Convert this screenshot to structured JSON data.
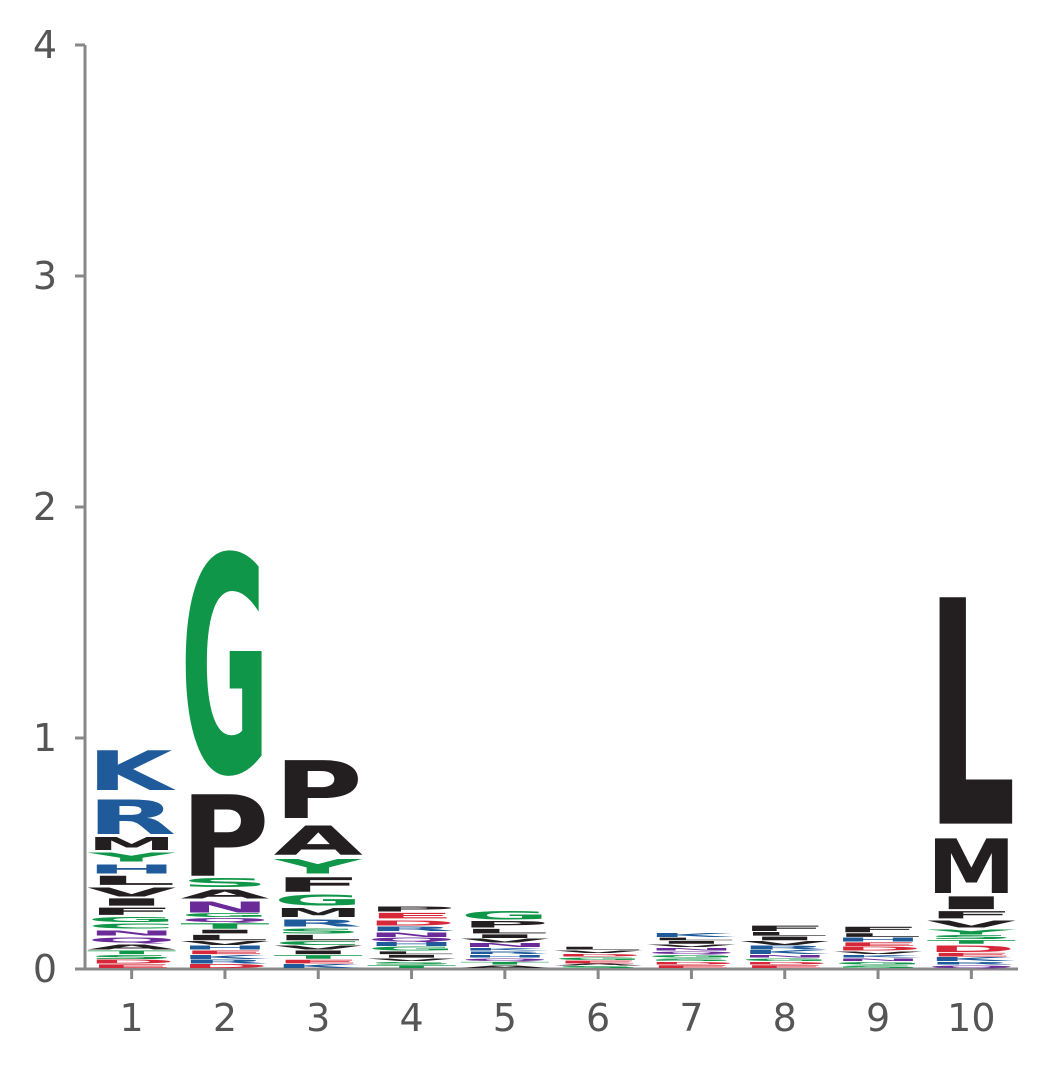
{
  "chart_data": {
    "type": "sequence-logo",
    "title": "",
    "xlabel": "",
    "ylabel": "",
    "ylim": [
      0,
      4
    ],
    "y_ticks": [
      "0",
      "1",
      "2",
      "3",
      "4"
    ],
    "positions": [
      "1",
      "2",
      "3",
      "4",
      "5",
      "6",
      "7",
      "8",
      "9",
      "10"
    ],
    "colors": {
      "K": "#1f5b9a",
      "R": "#1f5b9a",
      "H": "#1f5b9a",
      "G": "#109648",
      "S": "#109648",
      "T": "#109648",
      "Y": "#109648",
      "C": "#109648",
      "N": "#6a2b99",
      "Q": "#6a2b99",
      "D": "#d62839",
      "E": "#d62839",
      "P": "#231f20",
      "A": "#231f20",
      "M": "#231f20",
      "F": "#231f20",
      "L": "#231f20",
      "V": "#231f20",
      "I": "#231f20",
      "W": "#231f20",
      "axis": "#888888"
    },
    "stacks": [
      [
        {
          "letter": "E",
          "value": 0.02
        },
        {
          "letter": "D",
          "value": 0.02
        },
        {
          "letter": "S",
          "value": 0.02
        },
        {
          "letter": "T",
          "value": 0.02
        },
        {
          "letter": "A",
          "value": 0.03
        },
        {
          "letter": "Q",
          "value": 0.03
        },
        {
          "letter": "N",
          "value": 0.03
        },
        {
          "letter": "C",
          "value": 0.03
        },
        {
          "letter": "G",
          "value": 0.03
        },
        {
          "letter": "F",
          "value": 0.04
        },
        {
          "letter": "I",
          "value": 0.04
        },
        {
          "letter": "V",
          "value": 0.05
        },
        {
          "letter": "L",
          "value": 0.05
        },
        {
          "letter": "H",
          "value": 0.05
        },
        {
          "letter": "Y",
          "value": 0.05
        },
        {
          "letter": "M",
          "value": 0.07
        },
        {
          "letter": "R",
          "value": 0.19
        },
        {
          "letter": "K",
          "value": 0.22
        }
      ],
      [
        {
          "letter": "D",
          "value": 0.02
        },
        {
          "letter": "R",
          "value": 0.02
        },
        {
          "letter": "K",
          "value": 0.02
        },
        {
          "letter": "E",
          "value": 0.02
        },
        {
          "letter": "H",
          "value": 0.02
        },
        {
          "letter": "V",
          "value": 0.02
        },
        {
          "letter": "L",
          "value": 0.03
        },
        {
          "letter": "I",
          "value": 0.02
        },
        {
          "letter": "T",
          "value": 0.03
        },
        {
          "letter": "Q",
          "value": 0.02
        },
        {
          "letter": "G",
          "value": 0.02
        },
        {
          "letter": "N",
          "value": 0.06
        },
        {
          "letter": "A",
          "value": 0.05
        },
        {
          "letter": "S",
          "value": 0.05
        },
        {
          "letter": "P",
          "value": 0.45
        },
        {
          "letter": "G",
          "value": 1.2
        }
      ],
      [
        {
          "letter": "K",
          "value": 0.02
        },
        {
          "letter": "E",
          "value": 0.02
        },
        {
          "letter": "T",
          "value": 0.02
        },
        {
          "letter": "I",
          "value": 0.02
        },
        {
          "letter": "V",
          "value": 0.02
        },
        {
          "letter": "C",
          "value": 0.02
        },
        {
          "letter": "L",
          "value": 0.03
        },
        {
          "letter": "S",
          "value": 0.03
        },
        {
          "letter": "R",
          "value": 0.04
        },
        {
          "letter": "M",
          "value": 0.05
        },
        {
          "letter": "G",
          "value": 0.06
        },
        {
          "letter": "F",
          "value": 0.08
        },
        {
          "letter": "Y",
          "value": 0.08
        },
        {
          "letter": "A",
          "value": 0.16
        },
        {
          "letter": "P",
          "value": 0.32
        }
      ],
      [
        {
          "letter": "T",
          "value": 0.015
        },
        {
          "letter": "S",
          "value": 0.015
        },
        {
          "letter": "V",
          "value": 0.015
        },
        {
          "letter": "I",
          "value": 0.015
        },
        {
          "letter": "L",
          "value": 0.015
        },
        {
          "letter": "G",
          "value": 0.02
        },
        {
          "letter": "H",
          "value": 0.02
        },
        {
          "letter": "Q",
          "value": 0.02
        },
        {
          "letter": "N",
          "value": 0.025
        },
        {
          "letter": "R",
          "value": 0.025
        },
        {
          "letter": "D",
          "value": 0.03
        },
        {
          "letter": "E",
          "value": 0.03
        },
        {
          "letter": "P",
          "value": 0.03
        }
      ],
      [
        {
          "letter": "A",
          "value": 0.015
        },
        {
          "letter": "T",
          "value": 0.015
        },
        {
          "letter": "Q",
          "value": 0.015
        },
        {
          "letter": "H",
          "value": 0.015
        },
        {
          "letter": "R",
          "value": 0.015
        },
        {
          "letter": "K",
          "value": 0.015
        },
        {
          "letter": "N",
          "value": 0.02
        },
        {
          "letter": "V",
          "value": 0.02
        },
        {
          "letter": "I",
          "value": 0.02
        },
        {
          "letter": "L",
          "value": 0.025
        },
        {
          "letter": "P",
          "value": 0.035
        },
        {
          "letter": "G",
          "value": 0.045
        }
      ],
      [
        {
          "letter": "S",
          "value": 0.01
        },
        {
          "letter": "A",
          "value": 0.01
        },
        {
          "letter": "E",
          "value": 0.015
        },
        {
          "letter": "G",
          "value": 0.015
        },
        {
          "letter": "D",
          "value": 0.015
        },
        {
          "letter": "V",
          "value": 0.015
        },
        {
          "letter": "L",
          "value": 0.015
        }
      ],
      [
        {
          "letter": "E",
          "value": 0.015
        },
        {
          "letter": "D",
          "value": 0.015
        },
        {
          "letter": "S",
          "value": 0.015
        },
        {
          "letter": "G",
          "value": 0.015
        },
        {
          "letter": "Q",
          "value": 0.015
        },
        {
          "letter": "N",
          "value": 0.015
        },
        {
          "letter": "V",
          "value": 0.015
        },
        {
          "letter": "I",
          "value": 0.015
        },
        {
          "letter": "L",
          "value": 0.015
        },
        {
          "letter": "K",
          "value": 0.02
        }
      ],
      [
        {
          "letter": "E",
          "value": 0.015
        },
        {
          "letter": "D",
          "value": 0.015
        },
        {
          "letter": "G",
          "value": 0.015
        },
        {
          "letter": "N",
          "value": 0.015
        },
        {
          "letter": "K",
          "value": 0.02
        },
        {
          "letter": "R",
          "value": 0.02
        },
        {
          "letter": "V",
          "value": 0.02
        },
        {
          "letter": "I",
          "value": 0.02
        },
        {
          "letter": "L",
          "value": 0.02
        },
        {
          "letter": "F",
          "value": 0.03
        }
      ],
      [
        {
          "letter": "S",
          "value": 0.015
        },
        {
          "letter": "G",
          "value": 0.015
        },
        {
          "letter": "N",
          "value": 0.015
        },
        {
          "letter": "K",
          "value": 0.015
        },
        {
          "letter": "V",
          "value": 0.015
        },
        {
          "letter": "D",
          "value": 0.02
        },
        {
          "letter": "E",
          "value": 0.02
        },
        {
          "letter": "H",
          "value": 0.02
        },
        {
          "letter": "L",
          "value": 0.02
        },
        {
          "letter": "F",
          "value": 0.03
        }
      ],
      [
        {
          "letter": "Q",
          "value": 0.015
        },
        {
          "letter": "R",
          "value": 0.015
        },
        {
          "letter": "K",
          "value": 0.02
        },
        {
          "letter": "E",
          "value": 0.02
        },
        {
          "letter": "D",
          "value": 0.035
        },
        {
          "letter": "T",
          "value": 0.02
        },
        {
          "letter": "S",
          "value": 0.02
        },
        {
          "letter": "Y",
          "value": 0.03
        },
        {
          "letter": "V",
          "value": 0.04
        },
        {
          "letter": "F",
          "value": 0.04
        },
        {
          "letter": "I",
          "value": 0.07
        },
        {
          "letter": "M",
          "value": 0.3
        },
        {
          "letter": "L",
          "value": 1.25
        }
      ]
    ]
  }
}
